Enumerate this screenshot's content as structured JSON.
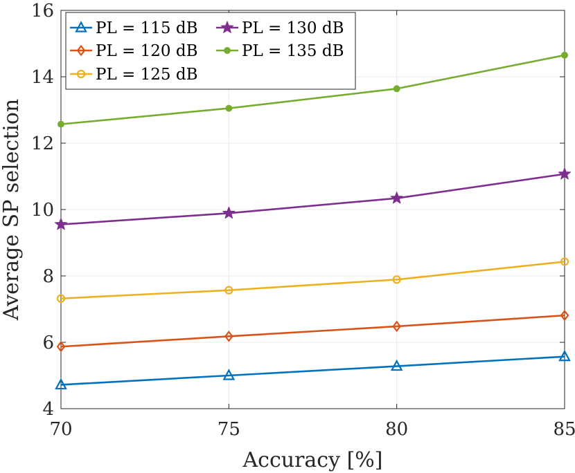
{
  "chart_data": {
    "type": "line",
    "title": "",
    "xlabel": "Accuracy [%]",
    "ylabel": "Average SP selection",
    "x": [
      70,
      75,
      80,
      85
    ],
    "xlim": [
      70,
      85
    ],
    "ylim": [
      4,
      16
    ],
    "xticks": [
      70,
      75,
      80,
      85
    ],
    "yticks": [
      4,
      6,
      8,
      10,
      12,
      14,
      16
    ],
    "grid": true,
    "legend_position": "top-left",
    "legend_columns": 2,
    "series": [
      {
        "name": "PL = 115 dB",
        "color": "#0072BD",
        "marker": "triangle",
        "values": [
          4.72,
          5.0,
          5.28,
          5.57
        ]
      },
      {
        "name": "PL = 120 dB",
        "color": "#D95319",
        "marker": "diamond",
        "values": [
          5.87,
          6.18,
          6.48,
          6.81
        ]
      },
      {
        "name": "PL = 125 dB",
        "color": "#EDB120",
        "marker": "circle",
        "values": [
          7.32,
          7.57,
          7.89,
          8.43
        ]
      },
      {
        "name": "PL = 130 dB",
        "color": "#7E2F8E",
        "marker": "star",
        "values": [
          9.55,
          9.89,
          10.34,
          11.07
        ]
      },
      {
        "name": "PL = 135 dB",
        "color": "#77AC30",
        "marker": "dot",
        "values": [
          12.57,
          13.05,
          13.64,
          14.65
        ]
      }
    ]
  }
}
